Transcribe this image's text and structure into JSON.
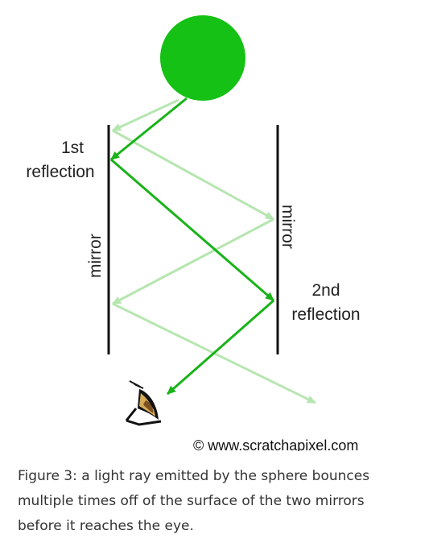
{
  "diagram": {
    "label_first_line1": "1st",
    "label_first_line2": "reflection",
    "label_second_line1": "2nd",
    "label_second_line2": "reflection",
    "mirror_left_label": "mirror",
    "mirror_right_label": "mirror",
    "credit": "© www.scratchapixel.com",
    "colors": {
      "sphere": "#14c114",
      "ray": "#19b319",
      "ray_faded": "#b6e6b0",
      "mirror": "#111111"
    },
    "icons": [
      "sphere-icon",
      "eye-icon"
    ]
  },
  "caption": {
    "text": "Figure 3: a light ray emitted by the sphere bounces multiple times off of the surface of the two mirrors before it reaches the eye."
  }
}
